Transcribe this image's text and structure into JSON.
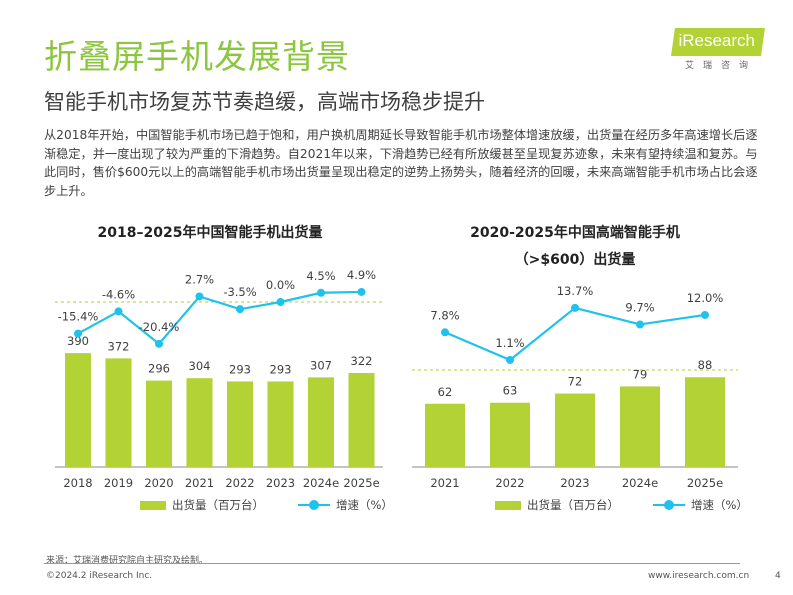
{
  "title": "折叠屏手机发展背景",
  "subtitle": "智能手机市场复苏节奏趋缓，高端市场稳步提升",
  "body": "从2018年开始，中国智能手机市场已趋于饱和，用户换机周期延长导致智能手机市场整体增速放缓，出货量在经历多年高速增长后逐渐稳定，并一度出现了较为严重的下滑趋势。自2021年以来，下滑趋势已经有所放缓甚至呈现复苏迹象，未来有望持续温和复苏。与此同时，售价$600元以上的高端智能手机市场出货量呈现出稳定的逆势上扬势头，随着经济的回暖，未来高端智能手机市场占比会逐步上升。",
  "logo": {
    "text": "iResearch",
    "sub": "艾瑞咨询"
  },
  "colors": {
    "accent": "#8cc63f",
    "bar": "#b2d235",
    "line": "#1fc2ec"
  },
  "chart_data": [
    {
      "type": "bar+line",
      "title": "2018–2025年中国智能手机出货量",
      "categories": [
        "2018",
        "2019",
        "2020",
        "2021",
        "2022",
        "2023",
        "2024e",
        "2025e"
      ],
      "series": [
        {
          "name": "出货量（百万台）",
          "type": "bar",
          "values": [
            390,
            372,
            296,
            304,
            293,
            293,
            307,
            322
          ]
        },
        {
          "name": "增速（%）",
          "type": "line",
          "values": [
            -15.4,
            -4.6,
            -20.4,
            2.7,
            -3.5,
            0.0,
            4.5,
            4.9
          ],
          "labels": [
            "-15.4%",
            "-4.6%",
            "-20.4%",
            "2.7%",
            "-3.5%",
            "0.0%",
            "4.5%",
            "4.9%"
          ]
        }
      ],
      "legend": "bottom",
      "grid": false
    },
    {
      "type": "bar+line",
      "title": "2020-2025年中国高端智能手机",
      "title2": "（>$600）出货量",
      "categories": [
        "2021",
        "2022",
        "2023",
        "2024e",
        "2025e"
      ],
      "series": [
        {
          "name": "出货量（百万台）",
          "type": "bar",
          "values": [
            62,
            63,
            72,
            79,
            88
          ]
        },
        {
          "name": "增速（%）",
          "type": "line",
          "values": [
            7.8,
            1.1,
            13.7,
            9.7,
            12.0
          ],
          "labels": [
            "7.8%",
            "1.1%",
            "13.7%",
            "9.7%",
            "12.0%"
          ]
        }
      ],
      "legend": "bottom",
      "grid": false
    }
  ],
  "footer": {
    "source": "来源：艾瑞消费研究院自主研究及绘制。",
    "copyright": "©2024.2 iResearch Inc.",
    "url": "www.iresearch.com.cn",
    "page": "4"
  }
}
